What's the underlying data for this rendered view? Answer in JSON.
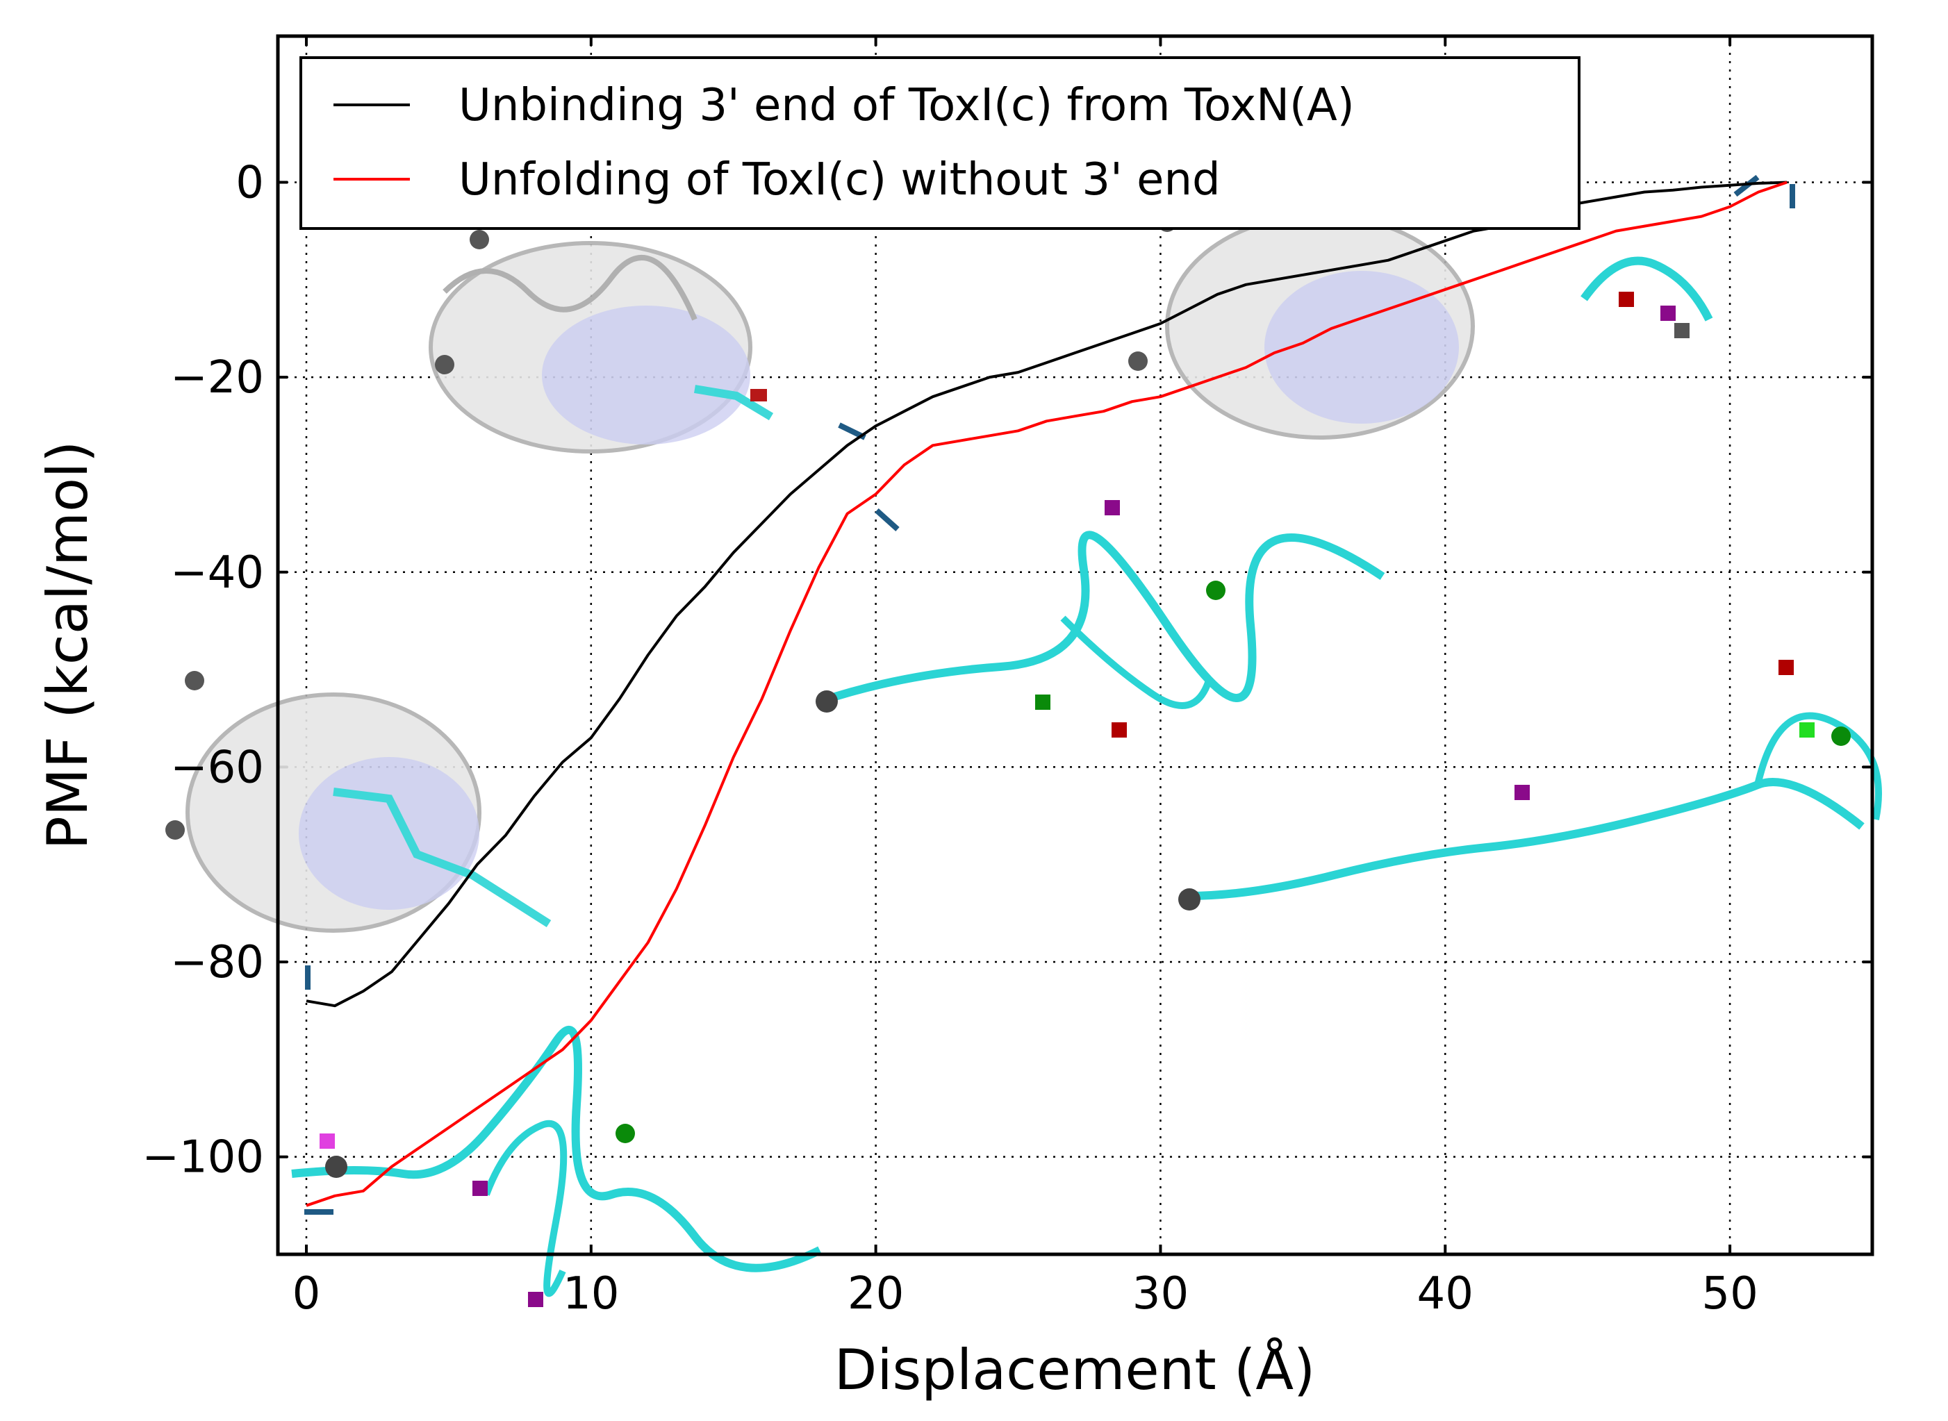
{
  "chart_data": {
    "type": "line",
    "xlabel": "Displacement (Å)",
    "ylabel": "PMF (kcal/mol)",
    "xlim": [
      -1,
      55
    ],
    "ylim": [
      -110,
      15
    ],
    "xticks": [
      0,
      10,
      20,
      30,
      40,
      50
    ],
    "yticks": [
      0,
      -20,
      -40,
      -60,
      -80,
      -100
    ],
    "xtick_labels": [
      "0",
      "10",
      "20",
      "30",
      "40",
      "50"
    ],
    "ytick_labels": [
      "0",
      "−20",
      "−40",
      "−60",
      "−80",
      "−100"
    ],
    "grid": true,
    "legend_position": "top-left",
    "series": [
      {
        "name": "Unbinding 3' end of ToxI(c) from ToxN(A)",
        "color": "#000000",
        "x": [
          0,
          1,
          2,
          3,
          4,
          5,
          6,
          7,
          8,
          9,
          10,
          11,
          12,
          13,
          14,
          15,
          16,
          17,
          18,
          19,
          20,
          21,
          22,
          23,
          24,
          25,
          26,
          27,
          28,
          29,
          30,
          31,
          32,
          33,
          34,
          35,
          36,
          37,
          38,
          39,
          40,
          41,
          42,
          43,
          44,
          45,
          46,
          47,
          48,
          49,
          50,
          51,
          52
        ],
        "y": [
          -84,
          -84.5,
          -83,
          -81,
          -77.5,
          -74,
          -70,
          -67,
          -63,
          -59.5,
          -57,
          -53,
          -48.5,
          -44.5,
          -41.5,
          -38,
          -35,
          -32,
          -29.5,
          -27,
          -25,
          -23.5,
          -22,
          -21,
          -20,
          -19.5,
          -18.5,
          -17.5,
          -16.5,
          -15.5,
          -14.5,
          -13,
          -11.5,
          -10.5,
          -10,
          -9.5,
          -9,
          -8.5,
          -8,
          -7,
          -6,
          -5,
          -4.5,
          -3.5,
          -2.5,
          -2,
          -1.5,
          -1,
          -0.8,
          -0.5,
          -0.3,
          -0.1,
          0
        ]
      },
      {
        "name": "Unfolding of ToxI(c) without 3' end",
        "color": "#ff0000",
        "x": [
          0,
          1,
          2,
          3,
          4,
          5,
          6,
          7,
          8,
          9,
          10,
          11,
          12,
          13,
          14,
          15,
          16,
          17,
          18,
          19,
          20,
          21,
          22,
          23,
          24,
          25,
          26,
          27,
          28,
          29,
          30,
          31,
          32,
          33,
          34,
          35,
          36,
          37,
          38,
          39,
          40,
          41,
          42,
          43,
          44,
          45,
          46,
          47,
          48,
          49,
          50,
          51,
          52
        ],
        "y": [
          -105,
          -104,
          -103.5,
          -101,
          -99,
          -97,
          -95,
          -93,
          -91,
          -89,
          -86,
          -82,
          -78,
          -72.5,
          -66,
          -59,
          -53,
          -46,
          -39.5,
          -34,
          -32,
          -29,
          -27,
          -26.5,
          -26,
          -25.5,
          -24.5,
          -24,
          -23.5,
          -22.5,
          -22,
          -21,
          -20,
          -19,
          -17.5,
          -16.5,
          -15,
          -14,
          -13,
          -12,
          -11,
          -10,
          -9,
          -8,
          -7,
          -6,
          -5,
          -4.5,
          -4,
          -3.5,
          -2.5,
          -1,
          0
        ]
      }
    ]
  }
}
